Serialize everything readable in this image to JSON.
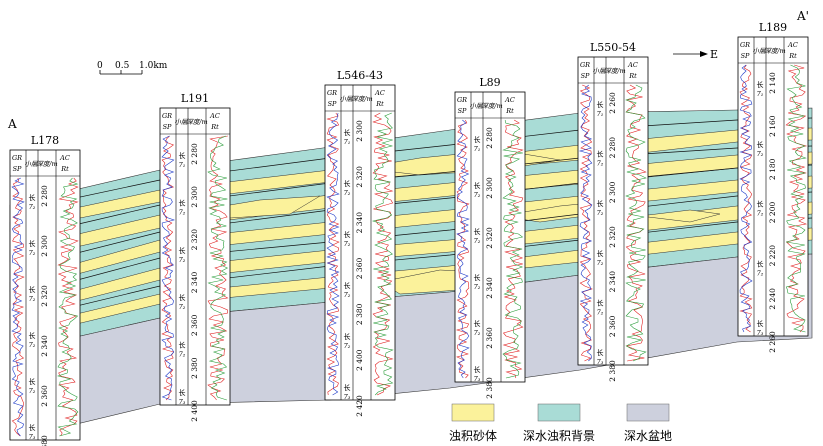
{
  "profile": {
    "start_label": "A",
    "end_label": "A'",
    "direction_label": "E",
    "scale": {
      "ticks": [
        "0",
        "0.5",
        "1.0km"
      ]
    }
  },
  "header_labels": {
    "gr": "GR",
    "sp": "SP",
    "layer": "小层",
    "depth": "深度/m",
    "ac": "AC",
    "rt": "Rt"
  },
  "layer_label_prefix": "长",
  "wells": [
    {
      "name": "L178",
      "depths": [
        "2 280",
        "2 300",
        "2 320",
        "2 340",
        "2 360",
        "2 380"
      ],
      "layers": [
        "7₂",
        "7₂",
        "7₂",
        "7₂",
        "7₂",
        "7₃"
      ]
    },
    {
      "name": "L191",
      "depths": [
        "2 280",
        "2 300",
        "2 320",
        "2 340",
        "2 360",
        "2 380",
        "2 400"
      ],
      "layers": [
        "7₁",
        "7₂",
        "7₂",
        "7₂",
        "7₂",
        "7₃"
      ]
    },
    {
      "name": "L546-43",
      "depths": [
        "2 300",
        "2 320",
        "2 340",
        "2 360",
        "2 380",
        "2 400",
        "2 420"
      ],
      "layers": [
        "7₁",
        "7₂",
        "7₂",
        "7₂",
        "7₂",
        "7₃"
      ]
    },
    {
      "name": "L89",
      "depths": [
        "2 280",
        "2 300",
        "2 320",
        "2 340",
        "2 360",
        "2 380"
      ],
      "layers": [
        "7₁",
        "7₂",
        "7₂",
        "7₂",
        "7₂",
        "7₃"
      ]
    },
    {
      "name": "L550-54",
      "depths": [
        "2 260",
        "2 280",
        "2 300",
        "2 320",
        "2 340",
        "2 360",
        "2 380"
      ],
      "layers": [
        "7₁",
        "7₂",
        "7₂",
        "7₂",
        "7₂",
        "7₃"
      ]
    },
    {
      "name": "L189",
      "depths": [
        "2 140",
        "2 160",
        "2 180",
        "2 200",
        "2 220",
        "2 240",
        "2 260"
      ],
      "layers": [
        "7₁",
        "7₂",
        "7₂",
        "7₂",
        "7₃"
      ]
    }
  ],
  "legend": [
    {
      "label": "浊积砂体",
      "color": "#fbf29b"
    },
    {
      "label": "深水浊积背景",
      "color": "#a9dcd6"
    },
    {
      "label": "深水盆地",
      "color": "#cdd0dd"
    }
  ],
  "colors": {
    "gr": "#e02020",
    "sp": "#1a37c8",
    "ac": "#e02020",
    "rt": "#2a9d3a"
  }
}
